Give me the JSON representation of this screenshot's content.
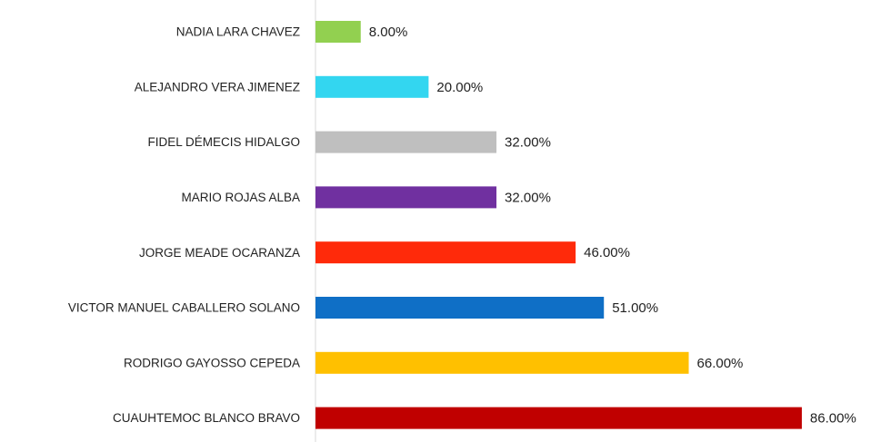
{
  "chart_data": {
    "type": "bar",
    "orientation": "horizontal",
    "categories": [
      "NADIA LARA CHAVEZ",
      "ALEJANDRO VERA JIMENEZ",
      "FIDEL DÉMECIS HIDALGO",
      "MARIO ROJAS ALBA",
      "JORGE MEADE OCARANZA",
      "VICTOR MANUEL CABALLERO SOLANO",
      "RODRIGO GAYOSSO CEPEDA",
      "CUAUHTEMOC BLANCO BRAVO"
    ],
    "values": [
      8,
      20,
      32,
      32,
      46,
      51,
      66,
      86
    ],
    "value_labels": [
      "8.00%",
      "20.00%",
      "32.00%",
      "32.00%",
      "46.00%",
      "51.00%",
      "66.00%",
      "86.00%"
    ],
    "colors": [
      "#92d050",
      "#33d6f0",
      "#bfbfbf",
      "#7030a0",
      "#ff2a0a",
      "#0f6fc6",
      "#ffc000",
      "#c00000"
    ],
    "xlim": [
      0,
      100
    ]
  }
}
